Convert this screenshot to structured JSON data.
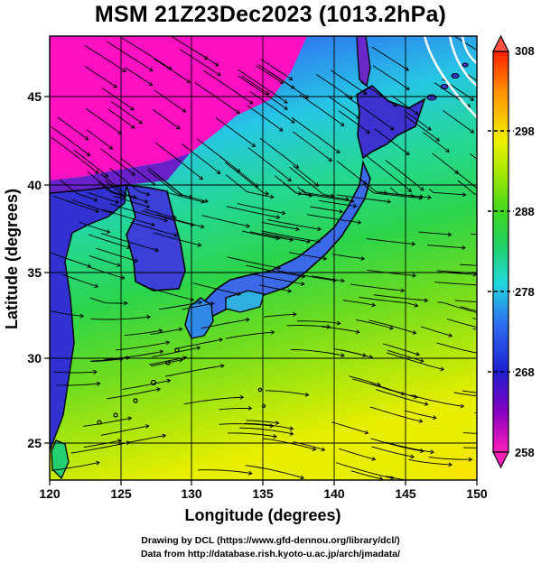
{
  "title": "MSM 21Z23Dec2023 (1013.2hPa)",
  "map": {
    "xlabel": "Longitude (degrees)",
    "ylabel": "Latitude  (degrees)",
    "lon_range": [
      120,
      150
    ],
    "lat_range": [
      22.5,
      48
    ],
    "lon_ticks": [
      "120",
      "125",
      "130",
      "135",
      "140",
      "145",
      "150"
    ],
    "lat_ticks": [
      "25",
      "30",
      "35",
      "40",
      "45"
    ],
    "field": "temperature (K) shaded, wind streamlines"
  },
  "colorbar": {
    "ticks": [
      "308",
      "298",
      "288",
      "278",
      "268",
      "258"
    ],
    "range": [
      258,
      308
    ],
    "colors": [
      "#ff1fb8",
      "#8800c0",
      "#1e1ed0",
      "#2e6ef0",
      "#22d8e0",
      "#22d060",
      "#40d820",
      "#a8e800",
      "#f0f000",
      "#ff9000",
      "#ff2000"
    ]
  },
  "credits": {
    "line1": "Drawing by DCL (https://www.gfd-dennou.org/library/dcl/)",
    "line2": "Data from http://database.rish.kyoto-u.ac.jp/arch/jmadata/"
  }
}
